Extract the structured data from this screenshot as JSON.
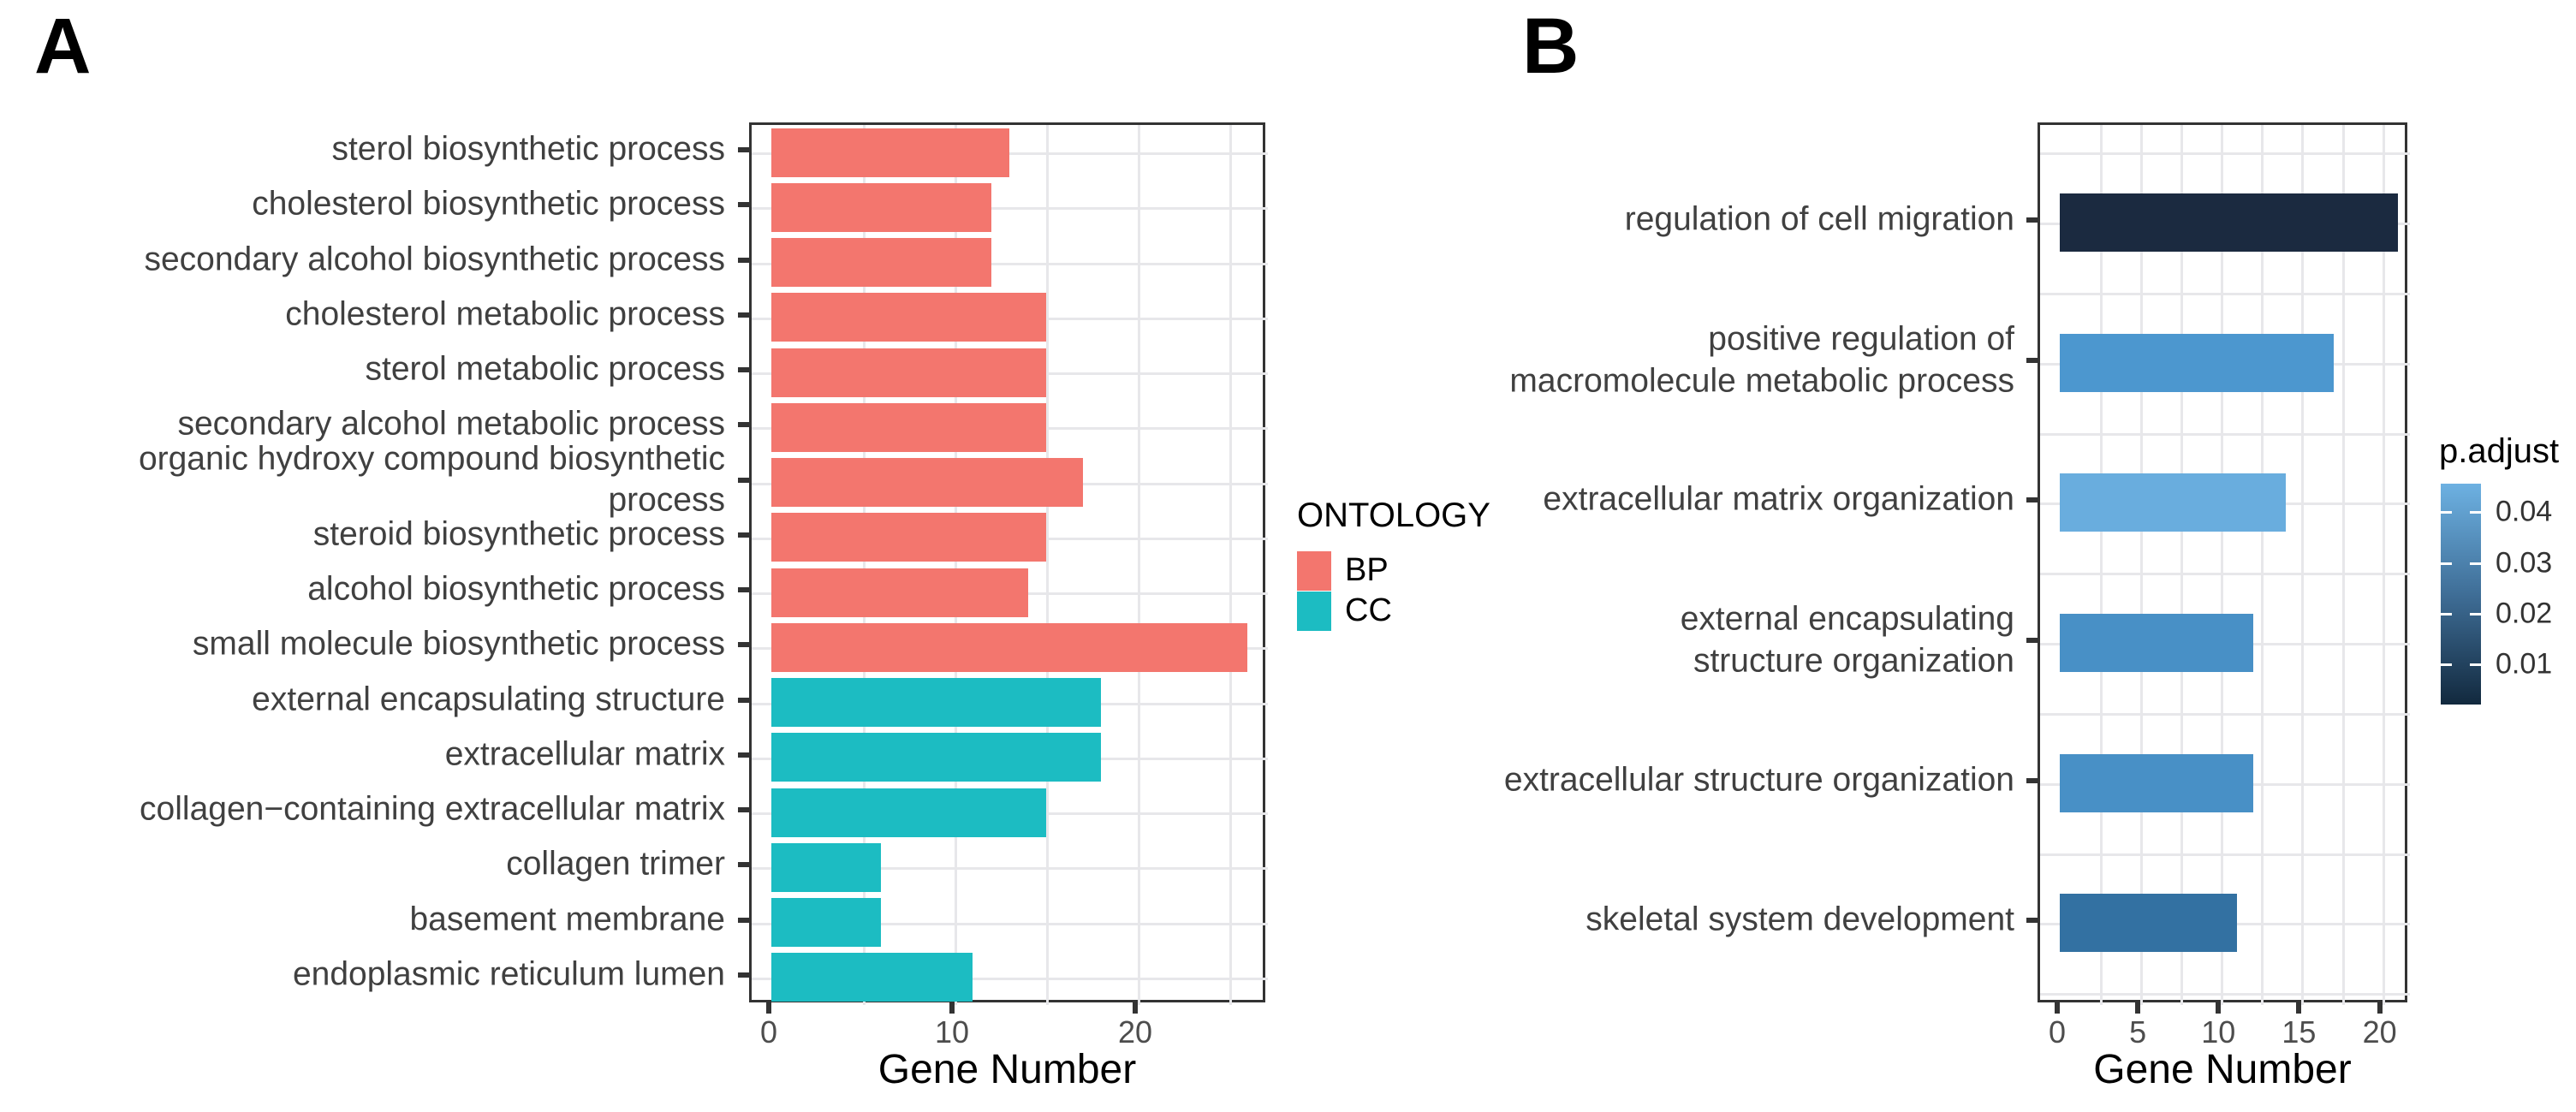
{
  "background_color": "#ffffff",
  "chart_data": [
    {
      "panel_label": "A",
      "type": "bar",
      "orientation": "horizontal",
      "xlabel": "Gene Number",
      "xlim": [
        0,
        27
      ],
      "x_ticks": [
        0,
        10,
        20
      ],
      "grid": "on",
      "legend_title": "ONTOLOGY",
      "legend_position": "right",
      "legend_items": [
        {
          "label": "BP",
          "color": "#F3766E"
        },
        {
          "label": "CC",
          "color": "#1CBCC2"
        }
      ],
      "categories": [
        "sterol biosynthetic process",
        "cholesterol biosynthetic process",
        "secondary alcohol biosynthetic process",
        "cholesterol metabolic process",
        "sterol metabolic process",
        "secondary alcohol metabolic process",
        "organic hydroxy compound biosynthetic process",
        "steroid biosynthetic process",
        "alcohol biosynthetic process",
        "small molecule biosynthetic process",
        "external encapsulating structure",
        "extracellular matrix",
        "collagen−containing extracellular matrix",
        "collagen trimer",
        "basement membrane",
        "endoplasmic reticulum lumen"
      ],
      "values": [
        13,
        12,
        12,
        15,
        15,
        15,
        17,
        15,
        14,
        26,
        18,
        18,
        15,
        6,
        6,
        11
      ],
      "groups": [
        "BP",
        "BP",
        "BP",
        "BP",
        "BP",
        "BP",
        "BP",
        "BP",
        "BP",
        "BP",
        "CC",
        "CC",
        "CC",
        "CC",
        "CC",
        "CC"
      ],
      "colors": {
        "BP": "#F3766E",
        "CC": "#1CBCC2"
      }
    },
    {
      "panel_label": "B",
      "type": "bar",
      "orientation": "horizontal",
      "xlabel": "Gene Number",
      "xlim": [
        0,
        21.7
      ],
      "x_ticks": [
        0,
        5,
        10,
        15,
        20
      ],
      "grid": "on",
      "legend_position": "right",
      "colorbar": {
        "title": "p.adjust",
        "ticks": [
          "0.04",
          "0.03",
          "0.02",
          "0.01"
        ],
        "top_color": "#6DB1E2",
        "bottom_color": "#12293E"
      },
      "categories": [
        "regulation of cell migration",
        "positive regulation of\nmacromolecule metabolic process",
        "extracellular matrix organization",
        "external encapsulating\nstructure organization",
        "extracellular structure organization",
        "skeletal system development"
      ],
      "values": [
        21,
        17,
        14,
        12,
        12,
        11
      ],
      "bar_colors": [
        "#1B2A40",
        "#4C97CF",
        "#69ADDE",
        "#4890C6",
        "#4890C6",
        "#3371A2"
      ]
    }
  ]
}
